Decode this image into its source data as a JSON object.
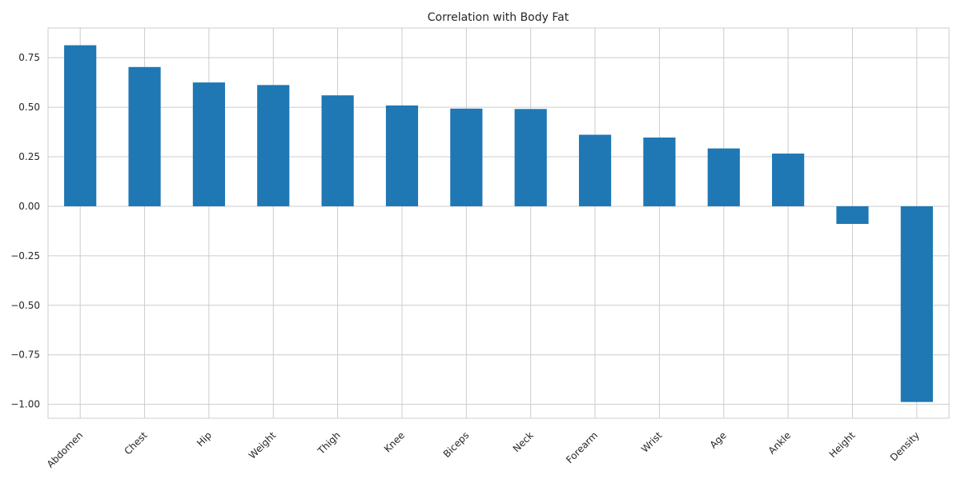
{
  "chart_data": {
    "type": "bar",
    "title": "Correlation with Body Fat",
    "xlabel": "",
    "ylabel": "",
    "categories": [
      "Abdomen",
      "Chest",
      "Hip",
      "Weight",
      "Thigh",
      "Knee",
      "Biceps",
      "Neck",
      "Forearm",
      "Wrist",
      "Age",
      "Ankle",
      "Height",
      "Density"
    ],
    "values": [
      0.813,
      0.703,
      0.625,
      0.612,
      0.56,
      0.509,
      0.493,
      0.491,
      0.361,
      0.347,
      0.292,
      0.266,
      -0.089,
      -0.988
    ],
    "ylim": [
      -1.07,
      0.9
    ],
    "yticks": [
      -1.0,
      -0.75,
      -0.5,
      -0.25,
      0.0,
      0.25,
      0.5,
      0.75
    ],
    "ytick_labels": [
      "−1.00",
      "−0.75",
      "−0.50",
      "−0.25",
      "0.00",
      "0.25",
      "0.50",
      "0.75"
    ],
    "grid": true,
    "legend": "none",
    "bar_color": "#1f77b4",
    "grid_color": "#cccccc",
    "spine_color": "#cccccc"
  }
}
